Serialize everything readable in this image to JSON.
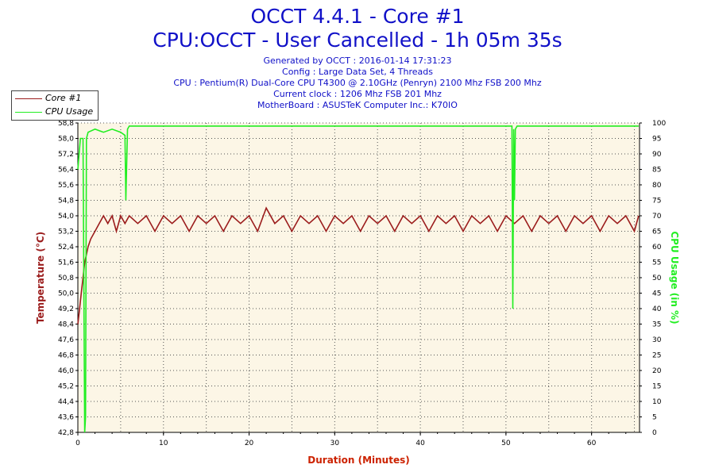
{
  "title_line1": "OCCT 4.4.1 - Core #1",
  "title_line2": "CPU:OCCT - User Cancelled - 1h 05m 35s",
  "info_lines": [
    "Generated by OCCT : 2016-01-14 17:31:23",
    "Config : Large Data Set, 4 Threads",
    "CPU : Pentium(R) Dual-Core CPU T4300 @ 2.10GHz (Penryn) 2100 Mhz FSB 200 Mhz",
    "Current clock : 1206 Mhz FSB 201 Mhz",
    "MotherBoard : ASUSTeK Computer Inc.: K70IO"
  ],
  "colors": {
    "title": "#1010c8",
    "temperature": "#9b1c1c",
    "cpu_usage": "#22ee22",
    "plot_bg": "#fcf6e6",
    "x_axis_label": "#cc2200"
  },
  "chart_data": {
    "type": "line",
    "xlabel": "Duration (Minutes)",
    "ylabel_left": "Temperature (°C)",
    "ylabel_right": "CPU Usage (in %)",
    "xlim": [
      0,
      65.6
    ],
    "ylim_left": [
      42.8,
      58.8
    ],
    "ylim_right": [
      0,
      100
    ],
    "x_ticks": [
      0,
      10,
      20,
      30,
      40,
      50,
      60
    ],
    "y_ticks_left": [
      "42,8",
      "43,6",
      "44,4",
      "45,2",
      "46,0",
      "46,8",
      "47,6",
      "48,4",
      "49,2",
      "50,0",
      "50,8",
      "51,6",
      "52,4",
      "53,2",
      "54,0",
      "54,8",
      "55,6",
      "56,4",
      "57,2",
      "58,0",
      "58,8"
    ],
    "y_ticks_right": [
      0,
      5,
      10,
      15,
      20,
      25,
      30,
      35,
      40,
      45,
      50,
      55,
      60,
      65,
      70,
      75,
      80,
      85,
      90,
      95,
      100
    ],
    "grid": true,
    "legend_position": "top-left",
    "series": [
      {
        "name": "Core #1",
        "axis": "left",
        "x": [
          0,
          0.2,
          0.4,
          0.6,
          0.8,
          1,
          1.2,
          1.5,
          2,
          2.5,
          3,
          3.5,
          4,
          4.5,
          5,
          5.5,
          6,
          7,
          8,
          9,
          10,
          11,
          12,
          13,
          14,
          15,
          16,
          17,
          18,
          19,
          20,
          21,
          22,
          23,
          24,
          25,
          26,
          27,
          28,
          29,
          30,
          31,
          32,
          33,
          34,
          35,
          36,
          37,
          38,
          39,
          40,
          41,
          42,
          43,
          44,
          45,
          46,
          47,
          48,
          49,
          50,
          51,
          52,
          53,
          54,
          55,
          56,
          57,
          58,
          59,
          60,
          61,
          62,
          63,
          64,
          65,
          65.5
        ],
        "y": [
          48.4,
          49.2,
          50.0,
          50.8,
          51.6,
          52.0,
          52.4,
          52.8,
          53.2,
          53.6,
          54.0,
          53.6,
          54.0,
          53.2,
          54.0,
          53.6,
          54.0,
          53.6,
          54.0,
          53.2,
          54.0,
          53.6,
          54.0,
          53.2,
          54.0,
          53.6,
          54.0,
          53.2,
          54.0,
          53.6,
          54.0,
          53.2,
          54.4,
          53.6,
          54.0,
          53.2,
          54.0,
          53.6,
          54.0,
          53.2,
          54.0,
          53.6,
          54.0,
          53.2,
          54.0,
          53.6,
          54.0,
          53.2,
          54.0,
          53.6,
          54.0,
          53.2,
          54.0,
          53.6,
          54.0,
          53.2,
          54.0,
          53.6,
          54.0,
          53.2,
          54.0,
          53.6,
          54.0,
          53.2,
          54.0,
          53.6,
          54.0,
          53.2,
          54.0,
          53.6,
          54.0,
          53.2,
          54.0,
          53.6,
          54.0,
          53.2,
          54.0
        ]
      },
      {
        "name": "CPU Usage",
        "axis": "right",
        "x": [
          0,
          0.3,
          0.6,
          0.8,
          0.9,
          1.0,
          1.2,
          2,
          3,
          4,
          5,
          5.5,
          5.6,
          5.8,
          6,
          10,
          20,
          30,
          40,
          50,
          50.7,
          50.8,
          50.9,
          51.0,
          51.1,
          51.3,
          52,
          55,
          60,
          65,
          65.5
        ],
        "y": [
          85,
          95,
          95,
          0,
          5,
          95,
          97,
          98,
          97,
          98,
          97,
          96,
          75,
          98,
          99,
          99,
          99,
          99,
          99,
          99,
          99,
          40,
          98,
          75,
          98,
          99,
          99,
          99,
          99,
          99,
          99
        ]
      }
    ]
  }
}
